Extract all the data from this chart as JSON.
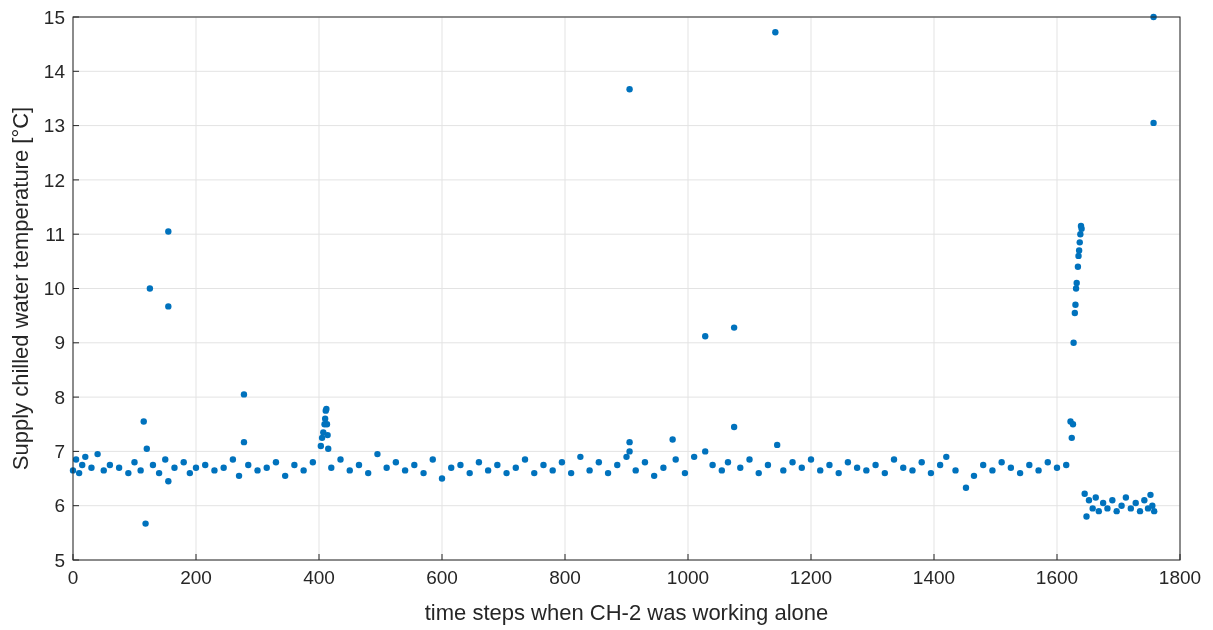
{
  "chart_data": {
    "type": "scatter",
    "xlabel": "time steps when CH-2 was working alone",
    "ylabel": "Supply chilled water temperature [°C]",
    "xlim": [
      0,
      1800
    ],
    "xticks": [
      0,
      200,
      400,
      600,
      800,
      1000,
      1200,
      1400,
      1600,
      1800
    ],
    "ylim": [
      5,
      15
    ],
    "yticks": [
      5,
      6,
      7,
      8,
      9,
      10,
      11,
      12,
      13,
      14,
      15
    ],
    "grid": true,
    "marker": "circle",
    "series": [
      {
        "color": "#0072bd",
        "x": [
          0,
          5,
          10,
          15,
          20,
          30,
          40,
          50,
          60,
          75,
          90,
          100,
          110,
          115,
          118,
          120,
          125,
          130,
          140,
          150,
          155,
          155,
          155,
          165,
          180,
          190,
          200,
          215,
          230,
          245,
          260,
          270,
          278,
          278,
          285,
          300,
          315,
          330,
          345,
          360,
          375,
          390,
          403,
          405,
          407,
          409,
          410,
          411,
          412,
          413,
          414,
          415,
          420,
          435,
          450,
          465,
          480,
          495,
          510,
          525,
          540,
          555,
          570,
          585,
          600,
          615,
          630,
          645,
          660,
          675,
          690,
          705,
          720,
          735,
          750,
          765,
          780,
          795,
          810,
          825,
          840,
          855,
          870,
          885,
          900,
          905,
          905,
          905,
          915,
          930,
          945,
          960,
          975,
          980,
          995,
          1010,
          1028,
          1028,
          1040,
          1055,
          1065,
          1075,
          1075,
          1085,
          1100,
          1115,
          1130,
          1142,
          1145,
          1155,
          1170,
          1185,
          1200,
          1215,
          1230,
          1245,
          1260,
          1275,
          1290,
          1305,
          1320,
          1335,
          1350,
          1365,
          1380,
          1395,
          1410,
          1420,
          1435,
          1452,
          1465,
          1480,
          1495,
          1510,
          1525,
          1540,
          1555,
          1570,
          1585,
          1600,
          1615,
          1622,
          1624,
          1626,
          1627,
          1629,
          1630,
          1631,
          1632,
          1634,
          1635,
          1636,
          1637,
          1638,
          1639,
          1640,
          1645,
          1648,
          1652,
          1658,
          1663,
          1668,
          1675,
          1682,
          1690,
          1697,
          1705,
          1712,
          1720,
          1728,
          1735,
          1742,
          1748,
          1752,
          1755,
          1757,
          1757,
          1758
        ],
        "values": [
          6.65,
          6.85,
          6.6,
          6.75,
          6.9,
          6.7,
          6.95,
          6.65,
          6.75,
          6.7,
          6.6,
          6.8,
          6.65,
          7.55,
          5.67,
          7.05,
          10.0,
          6.75,
          6.6,
          6.85,
          11.05,
          9.67,
          6.45,
          6.7,
          6.8,
          6.6,
          6.7,
          6.75,
          6.65,
          6.7,
          6.85,
          6.55,
          8.05,
          7.17,
          6.75,
          6.65,
          6.7,
          6.8,
          6.55,
          6.75,
          6.65,
          6.8,
          7.1,
          7.25,
          7.35,
          7.5,
          7.6,
          7.75,
          7.78,
          7.5,
          7.3,
          7.05,
          6.7,
          6.85,
          6.65,
          6.75,
          6.6,
          6.95,
          6.7,
          6.8,
          6.65,
          6.75,
          6.6,
          6.85,
          6.5,
          6.7,
          6.75,
          6.6,
          6.8,
          6.65,
          6.75,
          6.6,
          6.7,
          6.85,
          6.6,
          6.75,
          6.65,
          6.8,
          6.6,
          6.9,
          6.65,
          6.8,
          6.6,
          6.75,
          6.9,
          13.67,
          7.17,
          7.0,
          6.65,
          6.8,
          6.55,
          6.7,
          7.22,
          6.85,
          6.6,
          6.9,
          9.12,
          7.0,
          6.75,
          6.65,
          6.8,
          9.28,
          7.45,
          6.7,
          6.85,
          6.6,
          6.75,
          14.72,
          7.12,
          6.65,
          6.8,
          6.7,
          6.85,
          6.65,
          6.75,
          6.6,
          6.8,
          6.7,
          6.65,
          6.75,
          6.6,
          6.85,
          6.7,
          6.65,
          6.8,
          6.6,
          6.75,
          6.9,
          6.65,
          6.33,
          6.55,
          6.75,
          6.65,
          6.8,
          6.7,
          6.6,
          6.75,
          6.65,
          6.8,
          6.7,
          6.75,
          7.55,
          7.25,
          7.5,
          9.0,
          9.55,
          9.7,
          10.0,
          10.1,
          10.4,
          10.6,
          10.7,
          10.85,
          11.0,
          11.15,
          11.1,
          6.22,
          5.8,
          6.1,
          5.95,
          6.15,
          5.9,
          6.05,
          5.95,
          6.1,
          5.9,
          6.0,
          6.15,
          5.95,
          6.05,
          5.9,
          6.1,
          5.95,
          6.2,
          6.0,
          15.0,
          13.05,
          5.9
        ]
      }
    ]
  }
}
